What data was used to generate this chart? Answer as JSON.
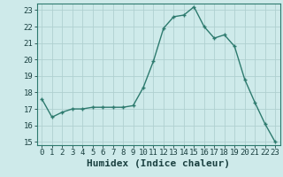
{
  "x": [
    0,
    1,
    2,
    3,
    4,
    5,
    6,
    7,
    8,
    9,
    10,
    11,
    12,
    13,
    14,
    15,
    16,
    17,
    18,
    19,
    20,
    21,
    22,
    23
  ],
  "y": [
    17.6,
    16.5,
    16.8,
    17.0,
    17.0,
    17.1,
    17.1,
    17.1,
    17.1,
    17.2,
    18.3,
    19.9,
    21.9,
    22.6,
    22.7,
    23.2,
    22.0,
    21.3,
    21.5,
    20.8,
    18.8,
    17.4,
    16.1,
    15.0
  ],
  "line_color": "#2d7a6e",
  "marker": "+",
  "marker_size": 3,
  "marker_linewidth": 1.0,
  "line_width": 1.0,
  "bg_color": "#ceeaea",
  "grid_color": "#b0d0d0",
  "xlabel": "Humidex (Indice chaleur)",
  "xlim": [
    -0.5,
    23.5
  ],
  "ylim": [
    14.8,
    23.4
  ],
  "yticks": [
    15,
    16,
    17,
    18,
    19,
    20,
    21,
    22,
    23
  ],
  "xticks": [
    0,
    1,
    2,
    3,
    4,
    5,
    6,
    7,
    8,
    9,
    10,
    11,
    12,
    13,
    14,
    15,
    16,
    17,
    18,
    19,
    20,
    21,
    22,
    23
  ],
  "tick_label_color": "#1a4040",
  "xlabel_fontsize": 8,
  "tick_fontsize": 6.5,
  "spine_color": "#2d7a6e"
}
